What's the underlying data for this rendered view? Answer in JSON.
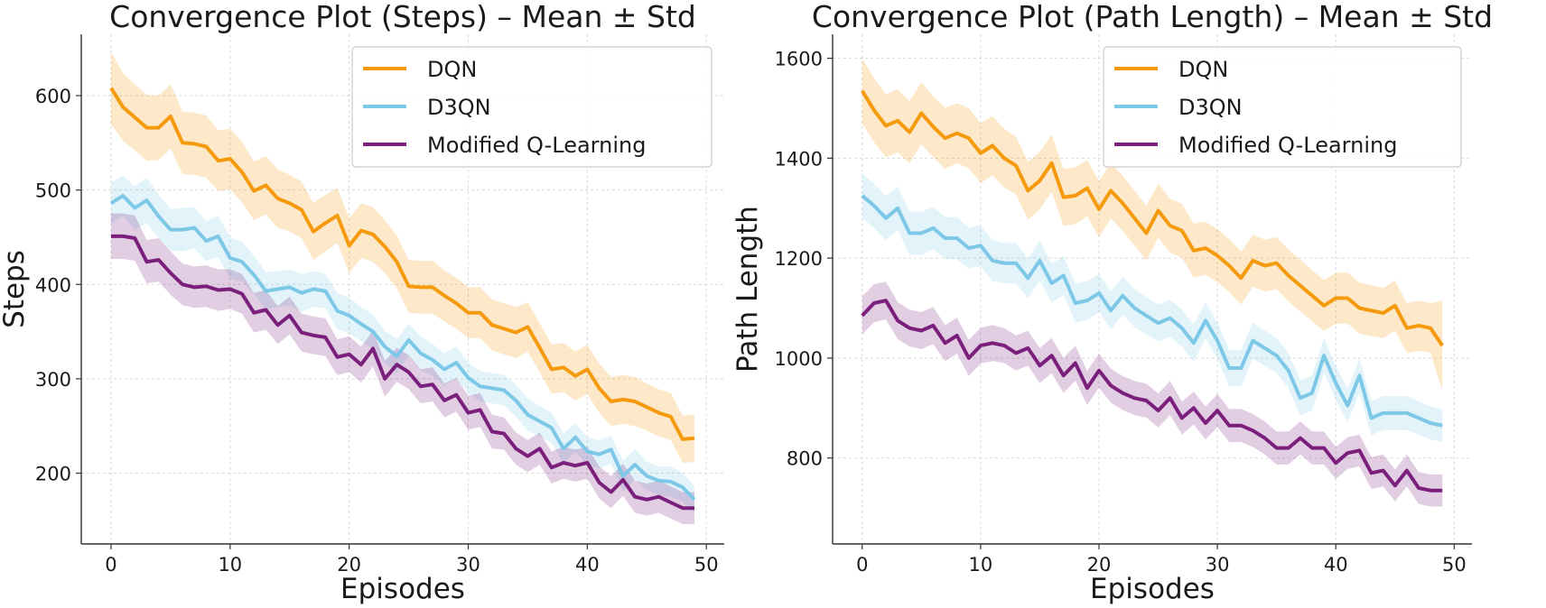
{
  "chart_data": [
    {
      "type": "line",
      "title": "Convergence Plot (Steps) – Mean ± Std",
      "xlabel": "Episodes",
      "ylabel": "Steps",
      "xlim": [
        -2.5,
        51.5
      ],
      "ylim": [
        125,
        665
      ],
      "xticks": [
        0,
        10,
        20,
        30,
        40,
        50
      ],
      "yticks": [
        200,
        300,
        400,
        500,
        600
      ],
      "grid": true,
      "legend_position": "top-right",
      "legend_entries": [
        "DQN",
        "D3QN",
        "Modified Q-Learning"
      ],
      "series": [
        {
          "name": "DQN",
          "color": "#f59a0c",
          "mean": [
            608,
            588,
            577,
            566,
            566,
            578,
            550,
            549,
            546,
            531,
            533,
            519,
            499,
            505,
            491,
            486,
            479,
            456,
            465,
            473,
            441,
            457,
            453,
            440,
            424,
            398,
            397,
            397,
            388,
            380,
            370,
            370,
            357,
            353,
            349,
            355,
            333,
            310,
            312,
            303,
            310,
            290,
            276,
            278,
            276,
            270,
            264,
            260,
            236,
            237
          ],
          "std": [
            38,
            36,
            35,
            35,
            34,
            34,
            33,
            33,
            33,
            32,
            32,
            32,
            31,
            31,
            31,
            30,
            30,
            30,
            30,
            29,
            29,
            29,
            29,
            28,
            28,
            28,
            28,
            28,
            27,
            27,
            27,
            27,
            27,
            27,
            27,
            26,
            26,
            26,
            26,
            26,
            26,
            26,
            26,
            26,
            26,
            25,
            25,
            25,
            25,
            25
          ]
        },
        {
          "name": "D3QN",
          "color": "#7cc8e6",
          "mean": [
            486,
            494,
            481,
            489,
            472,
            458,
            458,
            460,
            446,
            451,
            428,
            424,
            410,
            393,
            395,
            397,
            391,
            395,
            393,
            372,
            367,
            358,
            350,
            334,
            324,
            341,
            327,
            320,
            310,
            317,
            301,
            292,
            290,
            288,
            277,
            262,
            255,
            248,
            226,
            238,
            223,
            220,
            225,
            197,
            209,
            197,
            192,
            191,
            185,
            172
          ],
          "std": [
            22,
            21,
            23,
            24,
            23,
            22,
            23,
            22,
            21,
            22,
            22,
            21,
            20,
            20,
            19,
            19,
            20,
            19,
            18,
            19,
            19,
            18,
            18,
            17,
            18,
            17,
            18,
            17,
            17,
            17,
            16,
            16,
            16,
            16,
            17,
            17,
            16,
            16,
            16,
            15,
            15,
            15,
            15,
            16,
            16,
            15,
            15,
            16,
            15,
            14
          ]
        },
        {
          "name": "Modified Q-Learning",
          "color": "#7b1f7c",
          "mean": [
            451,
            451,
            449,
            424,
            426,
            412,
            400,
            397,
            398,
            394,
            395,
            390,
            370,
            373,
            357,
            367,
            349,
            346,
            344,
            323,
            326,
            315,
            332,
            300,
            315,
            307,
            292,
            294,
            277,
            283,
            264,
            267,
            244,
            242,
            226,
            218,
            226,
            206,
            211,
            208,
            211,
            190,
            180,
            193,
            175,
            172,
            175,
            169,
            163,
            163
          ],
          "std": [
            24,
            24,
            24,
            23,
            23,
            23,
            22,
            22,
            22,
            22,
            21,
            21,
            21,
            21,
            20,
            20,
            20,
            20,
            20,
            19,
            19,
            19,
            19,
            19,
            18,
            18,
            18,
            18,
            18,
            18,
            18,
            18,
            18,
            17,
            17,
            17,
            17,
            17,
            17,
            17,
            17,
            17,
            17,
            17,
            17,
            17,
            17,
            17,
            17,
            17
          ]
        }
      ]
    },
    {
      "type": "line",
      "title": "Convergence Plot (Path Length) – Mean ± Std",
      "xlabel": "Episodes",
      "ylabel": "Path Length",
      "xlim": [
        -2.5,
        51.5
      ],
      "ylim": [
        628,
        1648
      ],
      "xticks": [
        0,
        10,
        20,
        30,
        40,
        50
      ],
      "yticks": [
        800,
        1000,
        1200,
        1400,
        1600
      ],
      "grid": true,
      "legend_position": "top-right",
      "legend_entries": [
        "DQN",
        "D3QN",
        "Modified Q-Learning"
      ],
      "series": [
        {
          "name": "DQN",
          "color": "#f59a0c",
          "mean": [
            1535,
            1496,
            1465,
            1475,
            1452,
            1490,
            1463,
            1440,
            1450,
            1440,
            1410,
            1425,
            1400,
            1385,
            1335,
            1355,
            1390,
            1322,
            1325,
            1340,
            1298,
            1335,
            1310,
            1280,
            1250,
            1295,
            1265,
            1255,
            1215,
            1220,
            1205,
            1185,
            1160,
            1195,
            1185,
            1190,
            1165,
            1145,
            1125,
            1105,
            1120,
            1120,
            1100,
            1095,
            1090,
            1105,
            1060,
            1065,
            1060,
            1025
          ],
          "std": [
            65,
            64,
            63,
            63,
            62,
            62,
            61,
            61,
            60,
            60,
            60,
            59,
            59,
            58,
            58,
            58,
            57,
            57,
            57,
            56,
            56,
            56,
            55,
            55,
            55,
            54,
            54,
            54,
            54,
            53,
            53,
            53,
            53,
            52,
            52,
            52,
            52,
            52,
            51,
            51,
            51,
            51,
            51,
            51,
            50,
            50,
            50,
            50,
            50,
            90
          ]
        },
        {
          "name": "D3QN",
          "color": "#7cc8e6",
          "mean": [
            1325,
            1305,
            1280,
            1300,
            1250,
            1250,
            1260,
            1240,
            1240,
            1220,
            1225,
            1195,
            1190,
            1190,
            1160,
            1195,
            1150,
            1165,
            1110,
            1115,
            1130,
            1095,
            1125,
            1100,
            1085,
            1070,
            1080,
            1060,
            1030,
            1075,
            1035,
            980,
            980,
            1035,
            1020,
            1005,
            975,
            920,
            930,
            1005,
            950,
            905,
            965,
            880,
            890,
            890,
            890,
            880,
            870,
            865
          ],
          "std": [
            45,
            44,
            44,
            43,
            43,
            43,
            42,
            42,
            42,
            41,
            41,
            41,
            40,
            40,
            40,
            40,
            39,
            39,
            39,
            39,
            38,
            38,
            38,
            38,
            37,
            37,
            37,
            37,
            37,
            36,
            36,
            36,
            36,
            36,
            35,
            35,
            35,
            35,
            35,
            35,
            34,
            34,
            34,
            34,
            34,
            34,
            34,
            33,
            33,
            33
          ]
        },
        {
          "name": "Modified Q-Learning",
          "color": "#7b1f7c",
          "mean": [
            1085,
            1110,
            1115,
            1075,
            1060,
            1055,
            1065,
            1030,
            1045,
            1000,
            1025,
            1030,
            1025,
            1010,
            1020,
            985,
            1005,
            965,
            990,
            940,
            975,
            945,
            930,
            920,
            915,
            895,
            920,
            880,
            900,
            870,
            895,
            865,
            865,
            855,
            840,
            820,
            820,
            840,
            820,
            820,
            790,
            810,
            815,
            770,
            775,
            745,
            775,
            740,
            735,
            735
          ],
          "std": [
            38,
            38,
            38,
            37,
            37,
            37,
            37,
            36,
            36,
            36,
            36,
            36,
            35,
            35,
            35,
            35,
            35,
            35,
            35,
            34,
            34,
            34,
            34,
            34,
            34,
            34,
            34,
            33,
            33,
            33,
            33,
            33,
            33,
            33,
            33,
            33,
            33,
            33,
            33,
            33,
            32,
            32,
            32,
            32,
            32,
            32,
            32,
            32,
            32,
            32
          ]
        }
      ]
    }
  ]
}
